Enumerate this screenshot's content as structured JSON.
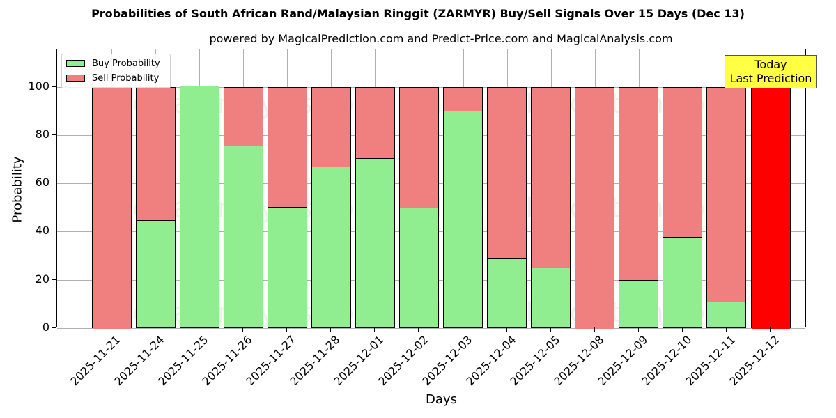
{
  "title": "Probabilities of South African Rand/Malaysian Ringgit (ZARMYR) Buy/Sell Signals Over 15 Days (Dec 13)",
  "subtitle": "powered by MagicalPrediction.com and Predict-Price.com and MagicalAnalysis.com",
  "xlabel": "Days",
  "ylabel": "Probability",
  "legend": {
    "buy_label": "Buy Probability",
    "sell_label": "Sell Probability"
  },
  "annotation": {
    "line1": "Today",
    "line2": "Last Prediction"
  },
  "watermarks": [
    "MagicalAnalysis.com",
    "MagicalPrediction.com"
  ],
  "colors": {
    "buy": "#90ee90",
    "sell": "#f08080",
    "today_sell": "#ff0000",
    "annotation_bg": "#ffff44",
    "grid": "#b0b0b0"
  },
  "y_ticks": [
    "0",
    "20",
    "40",
    "60",
    "80",
    "100"
  ],
  "chart_data": {
    "type": "bar",
    "stacked": true,
    "title": "Probabilities of South African Rand/Malaysian Ringgit (ZARMYR) Buy/Sell Signals Over 15 Days (Dec 13)",
    "subtitle": "powered by MagicalPrediction.com and Predict-Price.com and MagicalAnalysis.com",
    "xlabel": "Days",
    "ylabel": "Probability",
    "ylim": [
      0,
      115.5
    ],
    "yticks": [
      0,
      20,
      40,
      60,
      80,
      100
    ],
    "grid": true,
    "legend_position": "upper left",
    "reference_line": {
      "y": 110,
      "style": "dashed",
      "color": "#808080"
    },
    "categories": [
      "2025-11-21",
      "2025-11-24",
      "2025-11-25",
      "2025-11-26",
      "2025-11-27",
      "2025-11-28",
      "2025-12-01",
      "2025-12-02",
      "2025-12-03",
      "2025-12-04",
      "2025-12-05",
      "2025-12-08",
      "2025-12-09",
      "2025-12-10",
      "2025-12-11",
      "2025-12-12"
    ],
    "series": [
      {
        "name": "Buy Probability",
        "color": "#90ee90",
        "values": [
          0,
          44.5,
          100,
          75.4,
          49.9,
          66.6,
          70.1,
          49.6,
          89.7,
          28.6,
          24.7,
          0,
          19.7,
          37.4,
          10.8,
          0
        ]
      },
      {
        "name": "Sell Probability",
        "color": "#f08080",
        "values": [
          100,
          55.5,
          0,
          24.6,
          50.1,
          33.4,
          29.9,
          50.4,
          10.3,
          71.4,
          75.3,
          100,
          80.3,
          62.6,
          89.2,
          100
        ]
      }
    ],
    "annotations": [
      {
        "text": "Today\nLast Prediction",
        "category": "2025-12-12",
        "background": "#ffff44"
      }
    ],
    "highlight": {
      "category": "2025-12-12",
      "sell_color": "#ff0000"
    }
  }
}
